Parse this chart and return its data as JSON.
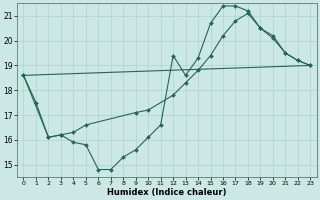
{
  "xlabel": "Humidex (Indice chaleur)",
  "bg_color": "#cce8e4",
  "grid_color": "#b0d8d0",
  "line_color": "#226655",
  "xlim": [
    -0.5,
    23.5
  ],
  "ylim": [
    14.5,
    21.5
  ],
  "yticks": [
    15,
    16,
    17,
    18,
    19,
    20,
    21
  ],
  "xticks": [
    0,
    1,
    2,
    3,
    4,
    5,
    6,
    7,
    8,
    9,
    10,
    11,
    12,
    13,
    14,
    15,
    16,
    17,
    18,
    19,
    20,
    21,
    22,
    23
  ],
  "series": [
    {
      "x": [
        0,
        1,
        2,
        3,
        4,
        5,
        6,
        7,
        8,
        9,
        10,
        11,
        12,
        13,
        14,
        15,
        16,
        17,
        18,
        19,
        20,
        21,
        22,
        23
      ],
      "y": [
        18.6,
        17.5,
        16.1,
        16.2,
        15.9,
        15.8,
        14.8,
        14.8,
        15.3,
        15.6,
        16.1,
        16.6,
        19.4,
        18.6,
        19.3,
        20.7,
        21.4,
        21.4,
        21.2,
        20.5,
        20.1,
        19.5,
        19.2,
        19.0
      ],
      "has_markers": true
    },
    {
      "x": [
        0,
        2,
        3,
        4,
        5,
        9,
        10,
        12,
        13,
        14,
        15,
        16,
        17,
        18,
        19,
        20,
        21,
        22,
        23
      ],
      "y": [
        18.6,
        16.1,
        16.2,
        16.3,
        16.6,
        17.1,
        17.2,
        17.8,
        18.3,
        18.8,
        19.4,
        20.2,
        20.8,
        21.1,
        20.5,
        20.2,
        19.5,
        19.2,
        19.0
      ],
      "has_markers": true
    },
    {
      "x": [
        0,
        23
      ],
      "y": [
        18.6,
        19.0
      ],
      "has_markers": false
    }
  ]
}
